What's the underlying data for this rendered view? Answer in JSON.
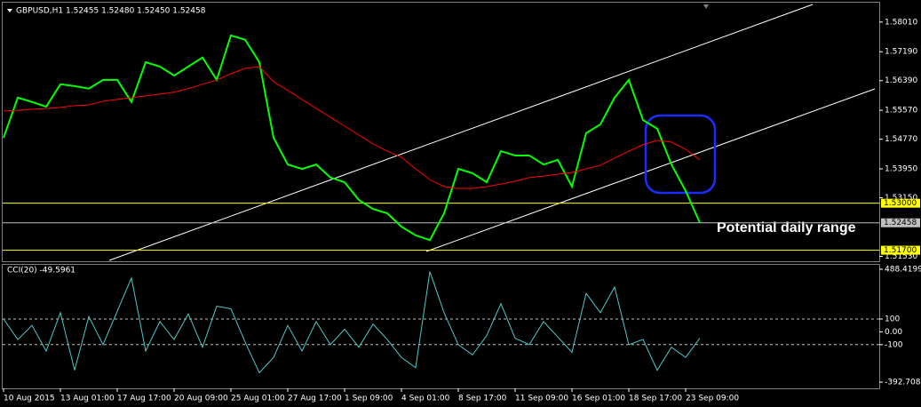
{
  "chart_data": [
    {
      "type": "line",
      "title": "GBPUSD,H1  1.52455 1.52480 1.52450 1.52458",
      "annotation": "Potential daily range",
      "ylim": [
        1.5137,
        1.5862
      ],
      "yticks": [
        {
          "value": 1.5801,
          "label": "1.58010"
        },
        {
          "value": 1.5719,
          "label": "1.57190"
        },
        {
          "value": 1.5639,
          "label": "1.56390"
        },
        {
          "value": 1.5557,
          "label": "1.55570"
        },
        {
          "value": 1.5477,
          "label": "1.54770"
        },
        {
          "value": 1.5395,
          "label": "1.53950"
        },
        {
          "value": 1.5315,
          "label": "1.53150"
        },
        {
          "value": 1.5153,
          "label": "1.51530"
        }
      ],
      "levels": [
        {
          "value": 1.53,
          "label": "1.53000",
          "color": "#ffff00"
        },
        {
          "value": 1.52458,
          "label": "1.52458",
          "color": "#c0c0c0"
        },
        {
          "value": 1.517,
          "label": "1.51700",
          "color": "#ffff00"
        }
      ],
      "series": [
        {
          "color": "#00ff00",
          "values": [
            1.5481,
            1.5592,
            1.558,
            1.5567,
            1.5629,
            1.5624,
            1.5617,
            1.5641,
            1.5641,
            1.558,
            1.569,
            1.5678,
            1.5653,
            1.5678,
            1.5703,
            1.5641,
            1.5764,
            1.5752,
            1.569,
            1.5481,
            1.5407,
            1.5395,
            1.5407,
            1.5371,
            1.5358,
            1.5309,
            1.5284,
            1.5272,
            1.5235,
            1.5211,
            1.5198,
            1.5272,
            1.5395,
            1.5383,
            1.5358,
            1.5444,
            1.5432,
            1.5432,
            1.5407,
            1.542,
            1.5346,
            1.5494,
            1.5518,
            1.5592,
            1.5641,
            1.553,
            1.5506,
            1.5407,
            1.5334,
            1.5246
          ]
        },
        {
          "color": "#ff0000",
          "values": [
            1.5555,
            1.5557,
            1.556,
            1.5562,
            1.5565,
            1.557,
            1.5572,
            1.5582,
            1.5587,
            1.5592,
            1.5597,
            1.5602,
            1.5607,
            1.5617,
            1.5629,
            1.5641,
            1.5658,
            1.5673,
            1.5678,
            1.5636,
            1.5612,
            1.5587,
            1.5562,
            1.5538,
            1.5513,
            1.5489,
            1.5464,
            1.5444,
            1.5427,
            1.5395,
            1.5365,
            1.5346,
            1.5341,
            1.5341,
            1.5346,
            1.5353,
            1.5361,
            1.5371,
            1.5375,
            1.538,
            1.5385,
            1.5395,
            1.5405,
            1.5425,
            1.5444,
            1.5462,
            1.5474,
            1.5469,
            1.5449,
            1.542
          ]
        }
      ]
    },
    {
      "type": "line",
      "title": "CCI(20) -49.5961",
      "categories": [
        "10 Aug 2015",
        null,
        null,
        null,
        "13 Aug 01:00",
        null,
        null,
        null,
        "17 Aug 17:00",
        null,
        null,
        null,
        "20 Aug 09:00",
        null,
        null,
        null,
        "25 Aug 01:00",
        null,
        null,
        null,
        "27 Aug 17:00",
        null,
        null,
        null,
        "1 Sep 09:00",
        null,
        null,
        null,
        "4 Sep 01:00",
        null,
        null,
        null,
        "8 Sep 17:00",
        null,
        null,
        null,
        "11 Sep 09:00",
        null,
        null,
        null,
        "16 Sep 01:00",
        null,
        null,
        null,
        "18 Sep 17:00",
        null,
        null,
        null,
        "23 Sep 09:00",
        null
      ],
      "ylim": [
        -392.7087,
        488.4199
      ],
      "yticks": [
        488.4199,
        100,
        {
          "value": 0,
          "label": "0.00"
        },
        -100,
        -392.7087
      ],
      "series": [
        {
          "color": "#4fc7c7",
          "values": [
            100,
            -60,
            50,
            -150,
            150,
            -300,
            120,
            -100,
            160,
            420,
            -150,
            80,
            -60,
            140,
            -120,
            200,
            180,
            -80,
            -320,
            -200,
            50,
            -150,
            80,
            -100,
            20,
            -120,
            60,
            -60,
            -200,
            -280,
            470,
            150,
            -100,
            -180,
            -30,
            220,
            -50,
            -100,
            80,
            -40,
            -160,
            300,
            150,
            350,
            -100,
            -60,
            -300,
            -120,
            -200,
            -49.5961
          ]
        }
      ]
    }
  ]
}
